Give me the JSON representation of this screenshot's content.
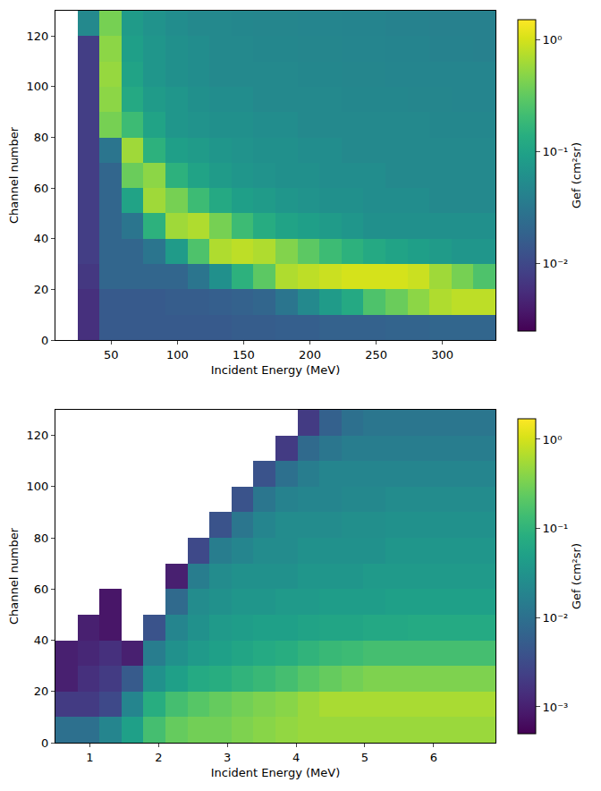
{
  "chart_data": [
    {
      "type": "heatmap",
      "x_label": "Incident Energy (MeV)",
      "y_label": "Channel number",
      "xlim": [
        8,
        340
      ],
      "ylim": [
        0,
        130
      ],
      "xticks": [
        50,
        100,
        150,
        200,
        250,
        300
      ],
      "yticks": [
        0,
        20,
        40,
        60,
        80,
        100,
        120
      ],
      "grid": false,
      "color": "viridis",
      "x_bins": [
        8,
        24.6,
        41.2,
        57.8,
        74.4,
        91,
        107.6,
        124.2,
        140.8,
        157.4,
        174,
        190.6,
        207.2,
        223.8,
        240.4,
        257,
        273.6,
        290.2,
        306.8,
        323.4,
        340
      ],
      "y_bins": [
        0,
        10,
        20,
        30,
        40,
        50,
        60,
        70,
        80,
        90,
        100,
        110,
        120,
        130
      ],
      "cells": [
        [
          null,
          0.006,
          0.015,
          0.015,
          0.015,
          0.015,
          0.015,
          0.015,
          0.016,
          0.016,
          0.017,
          0.017,
          0.018,
          0.018,
          0.018,
          0.019,
          0.019,
          0.02,
          0.02,
          0.02
        ],
        [
          null,
          0.006,
          0.015,
          0.015,
          0.015,
          0.016,
          0.016,
          0.017,
          0.018,
          0.02,
          0.03,
          0.05,
          0.08,
          0.12,
          0.25,
          0.35,
          0.5,
          0.7,
          0.8,
          0.8
        ],
        [
          null,
          0.007,
          0.02,
          0.02,
          0.02,
          0.02,
          0.03,
          0.06,
          0.15,
          0.3,
          0.7,
          0.8,
          0.9,
          1.0,
          1.0,
          1.0,
          0.9,
          0.6,
          0.4,
          0.25
        ],
        [
          null,
          0.008,
          0.02,
          0.02,
          0.03,
          0.08,
          0.25,
          0.7,
          0.8,
          0.7,
          0.45,
          0.3,
          0.2,
          0.15,
          0.12,
          0.1,
          0.09,
          0.08,
          0.07,
          0.07
        ],
        [
          null,
          0.008,
          0.02,
          0.03,
          0.15,
          0.6,
          0.7,
          0.4,
          0.2,
          0.13,
          0.1,
          0.09,
          0.08,
          0.07,
          0.06,
          0.06,
          0.06,
          0.06,
          0.06,
          0.06
        ],
        [
          null,
          0.008,
          0.02,
          0.1,
          0.6,
          0.4,
          0.2,
          0.12,
          0.09,
          0.08,
          0.07,
          0.065,
          0.06,
          0.06,
          0.055,
          0.055,
          0.055,
          0.05,
          0.05,
          0.05
        ],
        [
          null,
          0.008,
          0.02,
          0.35,
          0.5,
          0.15,
          0.1,
          0.08,
          0.07,
          0.065,
          0.06,
          0.06,
          0.055,
          0.055,
          0.055,
          0.05,
          0.05,
          0.05,
          0.05,
          0.05
        ],
        [
          null,
          0.008,
          0.03,
          0.6,
          0.15,
          0.09,
          0.08,
          0.07,
          0.065,
          0.06,
          0.06,
          0.055,
          0.055,
          0.05,
          0.05,
          0.05,
          0.05,
          0.05,
          0.05,
          0.05
        ],
        [
          null,
          0.008,
          0.4,
          0.2,
          0.1,
          0.07,
          0.065,
          0.06,
          0.06,
          0.055,
          0.055,
          0.05,
          0.05,
          0.05,
          0.05,
          0.05,
          0.05,
          0.048,
          0.048,
          0.048
        ],
        [
          null,
          0.008,
          0.5,
          0.12,
          0.08,
          0.07,
          0.06,
          0.055,
          0.055,
          0.05,
          0.05,
          0.05,
          0.05,
          0.048,
          0.048,
          0.048,
          0.046,
          0.046,
          0.045,
          0.045
        ],
        [
          null,
          0.008,
          0.55,
          0.1,
          0.07,
          0.06,
          0.055,
          0.05,
          0.05,
          0.05,
          0.05,
          0.048,
          0.048,
          0.046,
          0.046,
          0.045,
          0.045,
          0.045,
          0.045,
          0.045
        ],
        [
          null,
          0.008,
          0.5,
          0.09,
          0.07,
          0.06,
          0.055,
          0.05,
          0.05,
          0.048,
          0.048,
          0.046,
          0.046,
          0.045,
          0.045,
          0.044,
          0.044,
          0.042,
          0.042,
          0.04
        ],
        [
          null,
          0.05,
          0.4,
          0.08,
          0.065,
          0.055,
          0.05,
          0.05,
          0.048,
          0.046,
          0.046,
          0.045,
          0.045,
          0.044,
          0.044,
          0.042,
          0.042,
          0.04,
          0.04,
          0.04
        ]
      ],
      "colorbar": {
        "title": "Gef (cm²sr)",
        "range": [
          0.0025,
          1.5
        ],
        "ticks": [
          {
            "value": 0.01,
            "label": "10⁻²"
          },
          {
            "value": 0.1,
            "label": "10⁻¹"
          },
          {
            "value": 1,
            "label": "10⁰"
          }
        ]
      }
    },
    {
      "type": "heatmap",
      "x_label": "Incident Energy (MeV)",
      "y_label": "Channel number",
      "xlim": [
        0.5,
        6.9
      ],
      "ylim": [
        0,
        130
      ],
      "xticks": [
        1,
        2,
        3,
        4,
        5,
        6
      ],
      "yticks": [
        0,
        20,
        40,
        60,
        80,
        100,
        120
      ],
      "grid": false,
      "color": "viridis",
      "x_bins": [
        0.5,
        0.82,
        1.14,
        1.46,
        1.78,
        2.1,
        2.42,
        2.74,
        3.06,
        3.38,
        3.7,
        4.02,
        4.34,
        4.66,
        4.98,
        5.3,
        5.62,
        5.94,
        6.26,
        6.58,
        6.9
      ],
      "y_bins": [
        0,
        10,
        20,
        30,
        40,
        50,
        60,
        70,
        80,
        90,
        100,
        110,
        120,
        130
      ],
      "cells": [
        [
          0.01,
          0.01,
          0.02,
          0.05,
          0.15,
          0.25,
          0.3,
          0.3,
          0.35,
          0.4,
          0.45,
          0.5,
          0.5,
          0.5,
          0.5,
          0.5,
          0.5,
          0.5,
          0.5,
          0.5
        ],
        [
          0.002,
          0.002,
          0.003,
          0.02,
          0.08,
          0.15,
          0.2,
          0.25,
          0.3,
          0.35,
          0.4,
          0.5,
          0.6,
          0.6,
          0.6,
          0.6,
          0.6,
          0.6,
          0.6,
          0.6
        ],
        [
          0.001,
          0.0015,
          0.002,
          0.005,
          0.03,
          0.05,
          0.07,
          0.08,
          0.1,
          0.12,
          0.15,
          0.2,
          0.25,
          0.3,
          0.35,
          0.35,
          0.35,
          0.35,
          0.35,
          0.35
        ],
        [
          0.001,
          0.0012,
          0.0015,
          0.001,
          0.015,
          0.03,
          0.04,
          0.05,
          0.06,
          0.07,
          0.08,
          0.1,
          0.12,
          0.13,
          0.15,
          0.15,
          0.15,
          0.15,
          0.15,
          0.15
        ],
        [
          null,
          0.001,
          0.0008,
          null,
          0.004,
          0.02,
          0.03,
          0.04,
          0.045,
          0.05,
          0.05,
          0.055,
          0.06,
          0.06,
          0.065,
          0.065,
          0.07,
          0.07,
          0.07,
          0.07
        ],
        [
          null,
          null,
          0.0008,
          null,
          null,
          0.008,
          0.025,
          0.03,
          0.035,
          0.035,
          0.04,
          0.04,
          0.045,
          0.045,
          0.045,
          0.05,
          0.05,
          0.05,
          0.05,
          0.05
        ],
        [
          null,
          null,
          null,
          null,
          null,
          0.001,
          0.015,
          0.025,
          0.03,
          0.03,
          0.03,
          0.035,
          0.035,
          0.035,
          0.04,
          0.04,
          0.04,
          0.04,
          0.04,
          0.04
        ],
        [
          null,
          null,
          null,
          null,
          null,
          null,
          0.003,
          0.015,
          0.02,
          0.025,
          0.025,
          0.03,
          0.03,
          0.03,
          0.03,
          0.035,
          0.035,
          0.035,
          0.035,
          0.035
        ],
        [
          null,
          null,
          null,
          null,
          null,
          null,
          null,
          0.004,
          0.012,
          0.02,
          0.025,
          0.025,
          0.025,
          0.028,
          0.028,
          0.03,
          0.03,
          0.03,
          0.03,
          0.03
        ],
        [
          null,
          null,
          null,
          null,
          null,
          null,
          null,
          null,
          0.004,
          0.012,
          0.018,
          0.02,
          0.02,
          0.022,
          0.022,
          0.025,
          0.025,
          0.025,
          0.025,
          0.025
        ],
        [
          null,
          null,
          null,
          null,
          null,
          null,
          null,
          null,
          null,
          0.004,
          0.01,
          0.015,
          0.02,
          0.02,
          0.02,
          0.02,
          0.02,
          0.02,
          0.02,
          0.02
        ],
        [
          null,
          null,
          null,
          null,
          null,
          null,
          null,
          null,
          null,
          null,
          0.002,
          0.008,
          0.012,
          0.015,
          0.015,
          0.015,
          0.015,
          0.015,
          0.015,
          0.015
        ],
        [
          null,
          null,
          null,
          null,
          null,
          null,
          null,
          null,
          null,
          null,
          null,
          0.002,
          0.006,
          0.01,
          0.012,
          0.012,
          0.012,
          0.012,
          0.012,
          0.012
        ]
      ],
      "colorbar": {
        "title": "Gef (cm²sr)",
        "range": [
          0.0005,
          1.7
        ],
        "ticks": [
          {
            "value": 0.001,
            "label": "10⁻³"
          },
          {
            "value": 0.01,
            "label": "10⁻²"
          },
          {
            "value": 0.1,
            "label": "10⁻¹"
          },
          {
            "value": 1,
            "label": "10⁰"
          }
        ]
      }
    }
  ]
}
